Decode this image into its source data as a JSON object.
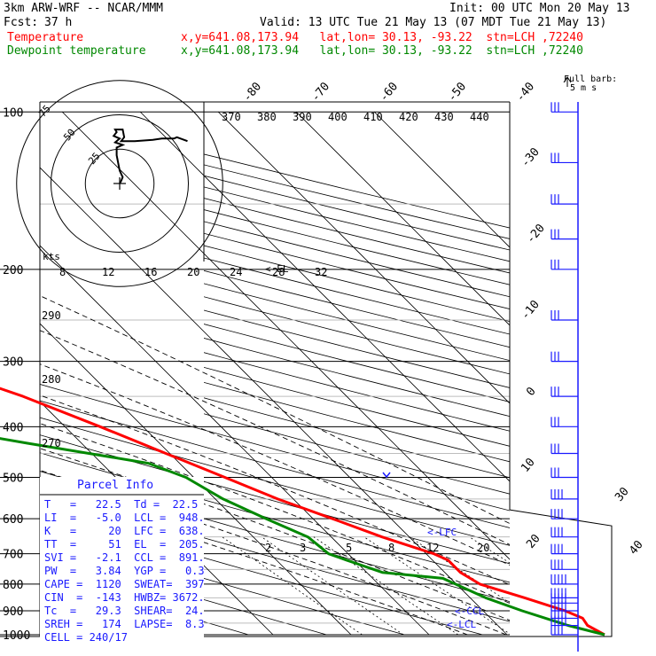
{
  "header": {
    "model": "3km ARW-WRF -- NCAR/MMM",
    "init": "Init: 00 UTC Mon 20 May 13",
    "fcst_label": "Fcst:",
    "fcst_value": "37 h",
    "valid": "Valid: 13 UTC Tue 21 May 13 (07 MDT Tue 21 May 13)",
    "temp_label": "Temperature",
    "dew_label": "Dewpoint temperature",
    "temp_loc": "x,y=641.08,173.94   lat,lon= 30.13, -93.22  stn=LCH ,72240",
    "dew_loc": "x,y=641.08,173.94   lat,lon= 30.13, -93.22  stn=LCH ,72240",
    "barb_label_1": "Full barb:",
    "barb_label_2": "5 m s",
    "colors": {
      "temperature": "#ff0000",
      "dewpoint": "#008800",
      "info": "#1a1aff",
      "mixing": "#000000"
    }
  },
  "chart_data": {
    "type": "line",
    "pressure_levels": [
      "100",
      "200",
      "300",
      "400",
      "500",
      "600",
      "700",
      "800",
      "900",
      "1000"
    ],
    "isotherm_labels_top": [
      "-80",
      "-70",
      "-60",
      "-50",
      "-40"
    ],
    "isotherm_labels_right": [
      "-30",
      "-20",
      "-10",
      "0",
      "10",
      "20",
      "30",
      "40"
    ],
    "theta_labels_top": [
      "370",
      "380",
      "390",
      "400",
      "410",
      "420",
      "430",
      "440"
    ],
    "theta_labels_left": [
      "290",
      "280",
      "270"
    ],
    "hodograph_speed_labels": [
      "8",
      "12",
      "16",
      "20",
      "24",
      "28",
      "32"
    ],
    "hodograph_ring_labels": [
      "75",
      "50",
      "25"
    ],
    "hodograph_unit": "kts",
    "mixing_ratio_labels": [
      "2",
      "3",
      "5",
      "8",
      "12",
      "20"
    ],
    "annotations": [
      "<-LFC",
      "<-CCL",
      "<-LCL",
      "<-EL"
    ],
    "series": [
      {
        "name": "Temperature",
        "points": [
          [
            1000,
            22.5
          ],
          [
            960,
            21.5
          ],
          [
            930,
            21.8
          ],
          [
            900,
            20.5
          ],
          [
            850,
            17
          ],
          [
            800,
            13
          ],
          [
            760,
            12
          ],
          [
            720,
            12
          ],
          [
            700,
            11
          ],
          [
            650,
            6.5
          ],
          [
            600,
            2.5
          ],
          [
            550,
            -2
          ],
          [
            500,
            -6
          ],
          [
            450,
            -10.5
          ],
          [
            400,
            -15.5
          ],
          [
            350,
            -21.5
          ],
          [
            300,
            -30
          ],
          [
            250,
            -40.5
          ],
          [
            200,
            -54
          ],
          [
            180,
            -58
          ],
          [
            160,
            -61
          ],
          [
            140,
            -62
          ],
          [
            125,
            -63
          ],
          [
            110,
            -62.5
          ],
          [
            100,
            -62
          ]
        ]
      },
      {
        "name": "Dewpoint temperature",
        "points": [
          [
            1000,
            22.5
          ],
          [
            960,
            19
          ],
          [
            900,
            15
          ],
          [
            850,
            12
          ],
          [
            780,
            9
          ],
          [
            760,
            2
          ],
          [
            720,
            -1
          ],
          [
            700,
            -2.5
          ],
          [
            650,
            -3
          ],
          [
            600,
            -6
          ],
          [
            550,
            -9
          ],
          [
            500,
            -11
          ],
          [
            470,
            -14
          ],
          [
            430,
            -27
          ],
          [
            400,
            -37
          ],
          [
            380,
            -45
          ],
          [
            370,
            -46
          ],
          [
            340,
            -45
          ],
          [
            320,
            -46.5
          ],
          [
            300,
            -50
          ],
          [
            250,
            -58
          ],
          [
            200,
            -66
          ],
          [
            170,
            -71
          ],
          [
            150,
            -75
          ],
          [
            140,
            -77
          ],
          [
            120,
            -78
          ],
          [
            110,
            -80
          ],
          [
            100,
            -80
          ]
        ]
      }
    ],
    "winds_kt": [
      [
        1000,
        20
      ],
      [
        960,
        24
      ],
      [
        930,
        26
      ],
      [
        900,
        27
      ],
      [
        870,
        26
      ],
      [
        850,
        25
      ],
      [
        800,
        24
      ],
      [
        750,
        22
      ],
      [
        700,
        20
      ],
      [
        650,
        19
      ],
      [
        600,
        18
      ],
      [
        550,
        18
      ],
      [
        500,
        17
      ],
      [
        450,
        17
      ],
      [
        400,
        17
      ],
      [
        350,
        17
      ],
      [
        300,
        17
      ],
      [
        250,
        17
      ],
      [
        200,
        17
      ],
      [
        175,
        17
      ],
      [
        150,
        17
      ],
      [
        125,
        17
      ],
      [
        100,
        17
      ]
    ],
    "hodograph": [
      [
        0,
        0
      ],
      [
        1,
        2
      ],
      [
        2,
        5
      ],
      [
        0,
        10
      ],
      [
        -1,
        16
      ],
      [
        -2,
        22
      ],
      [
        -2,
        28
      ],
      [
        2,
        30
      ],
      [
        -3,
        32
      ],
      [
        0,
        35
      ],
      [
        -4,
        37
      ],
      [
        -2,
        40
      ],
      [
        -3,
        42
      ],
      [
        2,
        42
      ],
      [
        3,
        36
      ],
      [
        1,
        33
      ],
      [
        10,
        33
      ],
      [
        22,
        34
      ],
      [
        28,
        35
      ],
      [
        36,
        35
      ],
      [
        38,
        36
      ],
      [
        45,
        33
      ]
    ]
  },
  "parcel_info": {
    "title": "Parcel Info",
    "rows": [
      "T   =   22.5  Td =  22.5",
      "LI  =   -5.0  LCL =  948.",
      "K   =     20  LFC =  638.",
      "TT  =     51  EL  =  205.",
      "SVI =   -2.1  CCL =  891.",
      "PW  =   3.84  YGP =   0.3",
      "CAPE =  1120  SWEAT=  397",
      "CIN  =  -143  HWBZ= 3672.",
      "Tc  =   29.3  SHEAR=  24.",
      "SREH =   174  LAPSE=  8.3",
      "CELL = 240/17"
    ]
  }
}
